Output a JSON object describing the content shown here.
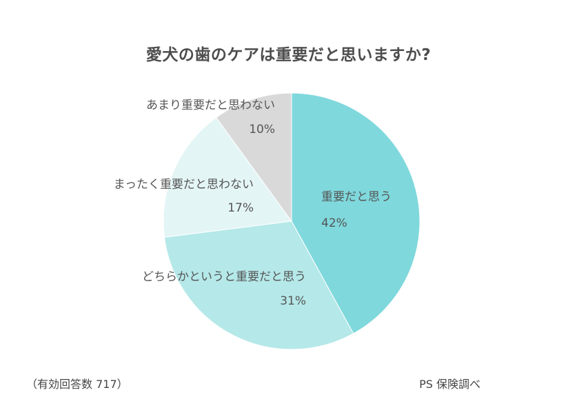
{
  "chart_data": {
    "type": "pie",
    "title": "愛犬の歯のケアは重要だと思いますか?",
    "categories": [
      "重要だと思う",
      "どちらかというと重要だと思う",
      "まったく重要だと思わない",
      "あまり重要だと思わない"
    ],
    "values": [
      42,
      31,
      17,
      10
    ],
    "unit": "%",
    "colors": [
      "#7fd8dc",
      "#b5e8e9",
      "#e4f5f6",
      "#d9d9d9"
    ],
    "start_angle": "12 o'clock, clockwise",
    "legend": "none (direct labels)"
  },
  "labels": {
    "s0": {
      "name": "重要だと思う",
      "pct": "42%"
    },
    "s1": {
      "name": "どちらかというと重要だと思う",
      "pct": "31%"
    },
    "s2": {
      "name": "まったく重要だと思わない",
      "pct": "17%"
    },
    "s3": {
      "name": "あまり重要だと思わない",
      "pct": "10%"
    }
  },
  "footer": {
    "sample": "（有効回答数 717）",
    "source": "PS 保険調べ"
  }
}
